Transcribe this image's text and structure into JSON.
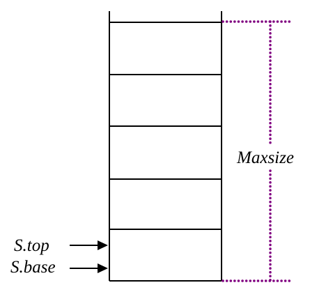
{
  "diagram": {
    "labels": {
      "top": "S.top",
      "base": "S.base",
      "maxsize": "Maxsize"
    },
    "colors": {
      "stroke": "#000000",
      "dimension": "#800080",
      "background": "#ffffff"
    },
    "stack_slots": 5
  }
}
